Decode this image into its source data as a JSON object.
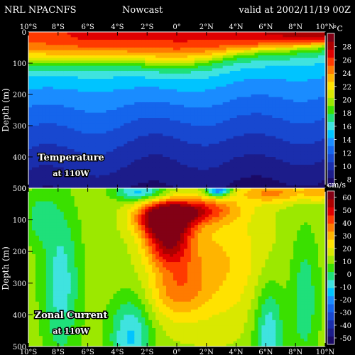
{
  "header": {
    "model": "NRL NPACNFS",
    "product": "Nowcast",
    "valid": "valid at 2002/11/19 00Z"
  },
  "chart_data": [
    {
      "type": "heatmap",
      "title": "Temperature",
      "subtitle": "at 110W",
      "units": "°C",
      "ylabel": "Depth (m)",
      "x_ticks": [
        "10°S",
        "8°S",
        "6°S",
        "4°S",
        "2°S",
        "0°",
        "2°N",
        "4°N",
        "6°N",
        "8°N",
        "10°N"
      ],
      "x_range": [
        -10,
        10
      ],
      "y_ticks": [
        100,
        200,
        300,
        400
      ],
      "y_range": [
        0,
        500
      ],
      "y_inverted": true,
      "colorbar_ticks": [
        8,
        10,
        12,
        14,
        16,
        18,
        20,
        22,
        24,
        26,
        28
      ],
      "colorbar_range": [
        7,
        30
      ],
      "approx_thermocline_20C": {
        "lat": [
          -10,
          -8,
          -6,
          -4,
          -2,
          0,
          2,
          4,
          6,
          8,
          10
        ],
        "depth": [
          95,
          95,
          90,
          90,
          100,
          105,
          92,
          72,
          62,
          55,
          45
        ]
      }
    },
    {
      "type": "heatmap",
      "title": "Zonal Current",
      "subtitle": "at 110W",
      "units": "cm/s",
      "ylabel": "Depth (m)",
      "x_ticks": [
        "10°S",
        "8°S",
        "6°S",
        "4°S",
        "2°S",
        "0°",
        "2°N",
        "4°N",
        "6°N",
        "8°N",
        "10°N"
      ],
      "x_range": [
        -10,
        10
      ],
      "y_ticks": [
        100,
        200,
        300,
        400
      ],
      "y_range": [
        0,
        500
      ],
      "y_inverted": true,
      "colorbar_ticks": [
        -50,
        -40,
        -30,
        -20,
        -10,
        0,
        10,
        20,
        30,
        40,
        50,
        60
      ],
      "colorbar_range": [
        -55,
        65
      ],
      "core_max": {
        "lat": -0.8,
        "depth": 100,
        "value": 60
      }
    }
  ],
  "colors": {
    "background": "#000000",
    "text": "#ffffff",
    "palette": [
      "#1b0a66",
      "#1c1c8a",
      "#1a2ead",
      "#1848d0",
      "#1565ec",
      "#1a8cff",
      "#00c4ff",
      "#3fe3df",
      "#1fe07a",
      "#3ae000",
      "#9ce800",
      "#d9e800",
      "#ffe200",
      "#ffb400",
      "#ff7b00",
      "#ff3a00",
      "#e00000",
      "#ad0000",
      "#820015"
    ]
  }
}
